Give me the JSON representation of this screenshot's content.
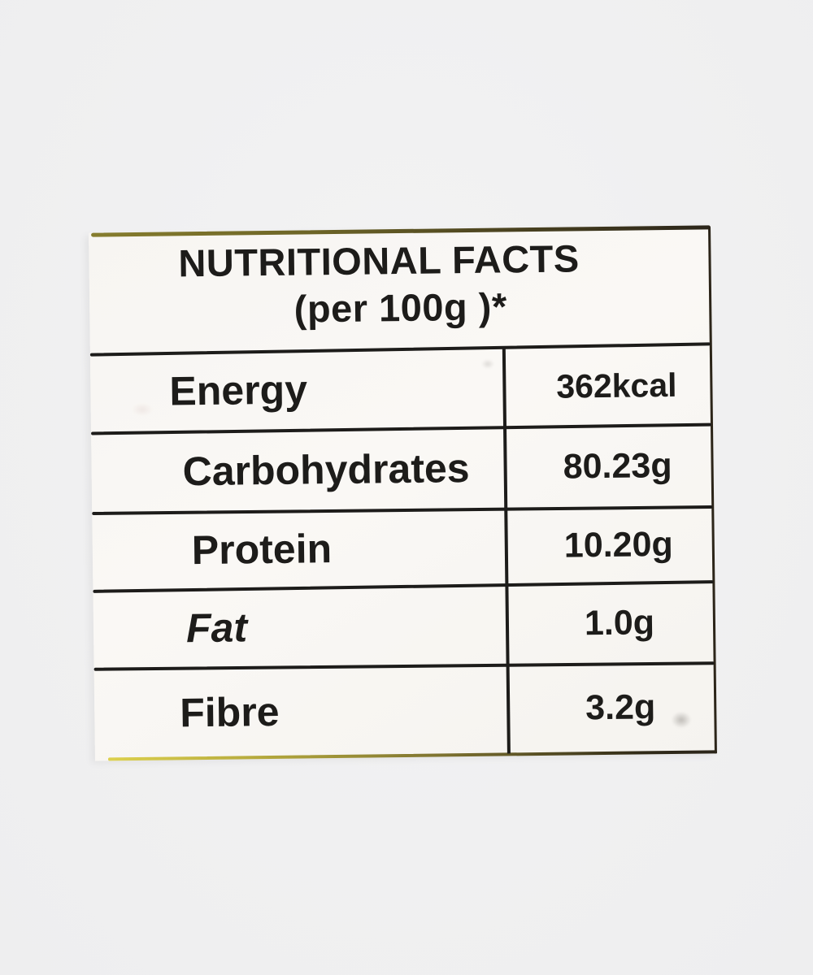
{
  "label": {
    "title": "NUTRITIONAL FACTS",
    "subtitle": "(per 100g )*",
    "rows": [
      {
        "name": "Energy",
        "value": "362kcal"
      },
      {
        "name": "Carbohydrates",
        "value": "80.23g"
      },
      {
        "name": "Protein",
        "value": "10.20g"
      },
      {
        "name": "Fat",
        "value": "1.0g"
      },
      {
        "name": "Fibre",
        "value": "3.2g"
      }
    ],
    "colors": {
      "ink": "#1d1c1a",
      "label_background": "#f8f6f3",
      "page_background": "#f0f0f1",
      "top_border_olive": "#7c7329",
      "bottom_border_yellow": "#d3c748",
      "edge_dark": "#2c2519"
    }
  }
}
